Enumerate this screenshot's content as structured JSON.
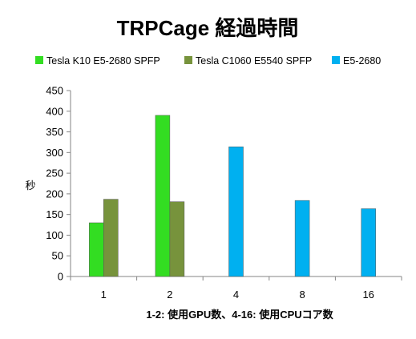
{
  "chart_data": {
    "type": "bar",
    "title": "TRPCage 経過時間",
    "xlabel": "1-2: 使用GPU数、4-16: 使用CPUコア数",
    "ylabel": "秒",
    "ylim": [
      0,
      450
    ],
    "yticks": [
      0,
      50,
      100,
      150,
      200,
      250,
      300,
      350,
      400,
      450
    ],
    "grid": false,
    "legend": "top",
    "categories": [
      "1",
      "2",
      "4",
      "8",
      "16"
    ],
    "series": [
      {
        "name": "Tesla K10 E5-2680 SPFP",
        "color": "#33dd22",
        "values": [
          130,
          390,
          null,
          null,
          null
        ]
      },
      {
        "name": "Tesla C1060 E5540 SPFP",
        "color": "#77933c",
        "values": [
          187,
          181,
          null,
          null,
          null
        ]
      },
      {
        "name": "E5-2680",
        "color": "#00b0f0",
        "values": [
          null,
          null,
          314,
          184,
          164
        ]
      }
    ]
  }
}
